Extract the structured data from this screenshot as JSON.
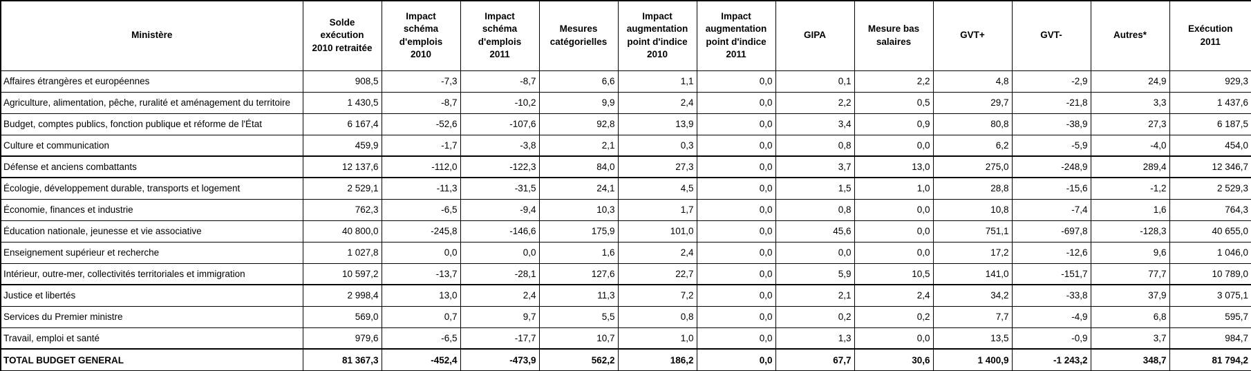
{
  "colors": {
    "border": "#000000",
    "text": "#000000",
    "background": "#ffffff"
  },
  "table": {
    "unit_note": "",
    "columns": [
      {
        "id": "ministere",
        "label": "Ministère"
      },
      {
        "id": "solde-execution-2010-retraitee",
        "label": "Solde\nexécution\n2010 retraitée"
      },
      {
        "id": "impact-schema-emplois-2010",
        "label": "Impact\nschéma\nd'emplois\n2010"
      },
      {
        "id": "impact-schema-emplois-2011",
        "label": "Impact\nschéma\nd'emplois\n2011"
      },
      {
        "id": "mesures-categorielles",
        "label": "Mesures\ncatégorielles"
      },
      {
        "id": "impact-augmentation-point-indice-2010",
        "label": "Impact\naugmentation\npoint d'indice\n2010"
      },
      {
        "id": "impact-augmentation-point-indice-2011",
        "label": "Impact\naugmentation\npoint d'indice\n2011"
      },
      {
        "id": "gipa",
        "label": "GIPA"
      },
      {
        "id": "mesure-bas-salaires",
        "label": "Mesure bas\nsalaires"
      },
      {
        "id": "gvt-plus",
        "label": "GVT+"
      },
      {
        "id": "gvt-minus",
        "label": "GVT-"
      },
      {
        "id": "autres",
        "label": "Autres*"
      },
      {
        "id": "execution-2011",
        "label": "Exécution\n2011"
      }
    ],
    "rows": [
      {
        "name": "Affaires étrangères et européennes",
        "values": [
          "908,5",
          "-7,3",
          "-8,7",
          "6,6",
          "1,1",
          "0,0",
          "0,1",
          "2,2",
          "4,8",
          "-2,9",
          "24,9",
          "929,3"
        ],
        "separator_below": false,
        "is_total": false
      },
      {
        "name": "Agriculture, alimentation, pêche, ruralité et aménagement du territoire",
        "values": [
          "1 430,5",
          "-8,7",
          "-10,2",
          "9,9",
          "2,4",
          "0,0",
          "2,2",
          "0,5",
          "29,7",
          "-21,8",
          "3,3",
          "1 437,6"
        ],
        "separator_below": false,
        "is_total": false
      },
      {
        "name": "Budget, comptes publics, fonction publique et réforme de l'État",
        "values": [
          "6 167,4",
          "-52,6",
          "-107,6",
          "92,8",
          "13,9",
          "0,0",
          "3,4",
          "0,9",
          "80,8",
          "-38,9",
          "27,3",
          "6 187,5"
        ],
        "separator_below": false,
        "is_total": false
      },
      {
        "name": "Culture et communication",
        "values": [
          "459,9",
          "-1,7",
          "-3,8",
          "2,1",
          "0,3",
          "0,0",
          "0,8",
          "0,0",
          "6,2",
          "-5,9",
          "-4,0",
          "454,0"
        ],
        "separator_below": true,
        "is_total": false
      },
      {
        "name": "Défense et anciens combattants",
        "values": [
          "12 137,6",
          "-112,0",
          "-122,3",
          "84,0",
          "27,3",
          "0,0",
          "3,7",
          "13,0",
          "275,0",
          "-248,9",
          "289,4",
          "12 346,7"
        ],
        "separator_below": true,
        "is_total": false
      },
      {
        "name": "Écologie, développement durable, transports et logement",
        "values": [
          "2 529,1",
          "-11,3",
          "-31,5",
          "24,1",
          "4,5",
          "0,0",
          "1,5",
          "1,0",
          "28,8",
          "-15,6",
          "-1,2",
          "2 529,3"
        ],
        "separator_below": false,
        "is_total": false
      },
      {
        "name": "Économie, finances et industrie",
        "values": [
          "762,3",
          "-6,5",
          "-9,4",
          "10,3",
          "1,7",
          "0,0",
          "0,8",
          "0,0",
          "10,8",
          "-7,4",
          "1,6",
          "764,3"
        ],
        "separator_below": false,
        "is_total": false
      },
      {
        "name": "Éducation nationale, jeunesse et vie associative",
        "values": [
          "40 800,0",
          "-245,8",
          "-146,6",
          "175,9",
          "101,0",
          "0,0",
          "45,6",
          "0,0",
          "751,1",
          "-697,8",
          "-128,3",
          "40 655,0"
        ],
        "separator_below": false,
        "is_total": false
      },
      {
        "name": "Enseignement supérieur et recherche",
        "values": [
          "1 027,8",
          "0,0",
          "0,0",
          "1,6",
          "2,4",
          "0,0",
          "0,0",
          "0,0",
          "17,2",
          "-12,6",
          "9,6",
          "1 046,0"
        ],
        "separator_below": false,
        "is_total": false
      },
      {
        "name": "Intérieur, outre-mer, collectivités territoriales et immigration",
        "values": [
          "10 597,2",
          "-13,7",
          "-28,1",
          "127,6",
          "22,7",
          "0,0",
          "5,9",
          "10,5",
          "141,0",
          "-151,7",
          "77,7",
          "10 789,0"
        ],
        "separator_below": true,
        "is_total": false
      },
      {
        "name": "Justice et libertés",
        "values": [
          "2 998,4",
          "13,0",
          "2,4",
          "11,3",
          "7,2",
          "0,0",
          "2,1",
          "2,4",
          "34,2",
          "-33,8",
          "37,9",
          "3 075,1"
        ],
        "separator_below": false,
        "is_total": false
      },
      {
        "name": "Services du Premier ministre",
        "values": [
          "569,0",
          "0,7",
          "9,7",
          "5,5",
          "0,8",
          "0,0",
          "0,2",
          "0,2",
          "7,7",
          "-4,9",
          "6,8",
          "595,7"
        ],
        "separator_below": false,
        "is_total": false
      },
      {
        "name": "Travail, emploi et santé",
        "values": [
          "979,6",
          "-6,5",
          "-17,7",
          "10,7",
          "1,0",
          "0,0",
          "1,3",
          "0,0",
          "13,5",
          "-0,9",
          "3,7",
          "984,7"
        ],
        "separator_below": false,
        "is_total": false
      },
      {
        "name": "TOTAL BUDGET GENERAL",
        "values": [
          "81 367,3",
          "-452,4",
          "-473,9",
          "562,2",
          "186,2",
          "0,0",
          "67,7",
          "30,6",
          "1 400,9",
          "-1 243,2",
          "348,7",
          "81 794,2"
        ],
        "separator_below": false,
        "is_total": true
      }
    ]
  }
}
